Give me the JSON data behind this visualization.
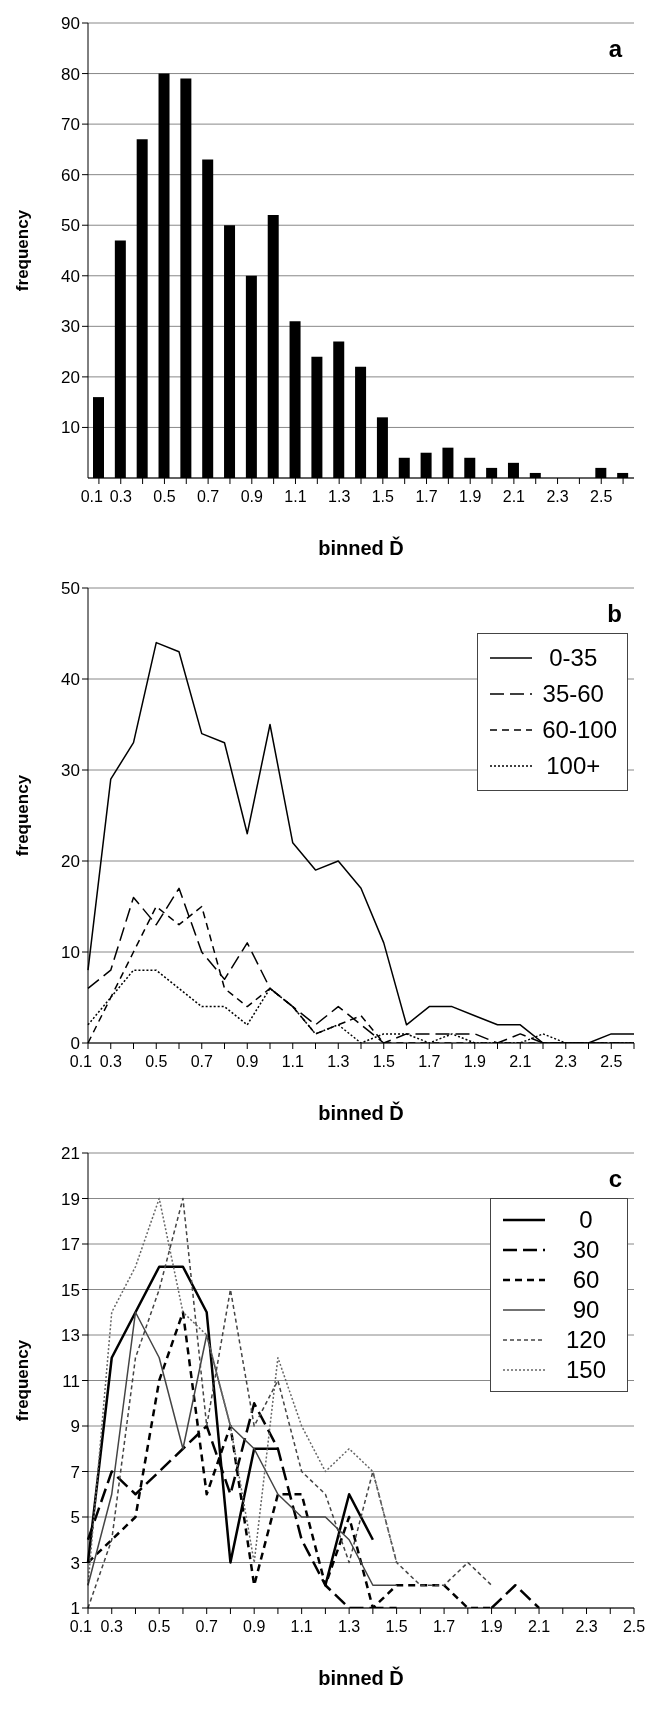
{
  "chart_data": [
    {
      "type": "bar",
      "title": "a",
      "xlabel": "binned Ď",
      "ylabel": "frequency",
      "categories": [
        "0.1",
        "0.3",
        null,
        "0.5",
        null,
        "0.7",
        null,
        "0.9",
        null,
        "1.1",
        null,
        "1.3",
        null,
        "1.5",
        null,
        "1.7",
        null,
        "1.9",
        null,
        "2.1",
        null,
        "2.3",
        null,
        "2.5",
        null
      ],
      "values": [
        16,
        47,
        67,
        80,
        79,
        63,
        50,
        40,
        52,
        31,
        24,
        27,
        22,
        12,
        4,
        5,
        6,
        4,
        2,
        3,
        1,
        0,
        0,
        2,
        1
      ],
      "color": "#000000",
      "ylim": [
        0,
        90
      ],
      "yticks": [
        10,
        20,
        30,
        40,
        50,
        60,
        70,
        80,
        90
      ],
      "grid": "y"
    },
    {
      "type": "line",
      "title": "b",
      "xlabel": "binned Ď",
      "ylabel": "frequency",
      "categories": [
        "0.1",
        "0.3",
        null,
        "0.5",
        null,
        "0.7",
        null,
        "0.9",
        null,
        "1.1",
        null,
        "1.3",
        null,
        "1.5",
        null,
        "1.7",
        null,
        "1.9",
        null,
        "2.1",
        null,
        "2.3",
        null,
        "2.5",
        null
      ],
      "series": [
        {
          "name": "0-35",
          "color": "#000000",
          "line_style": "solid",
          "values": [
            8,
            29,
            33,
            44,
            43,
            34,
            33,
            23,
            35,
            22,
            19,
            20,
            17,
            11,
            2,
            4,
            4,
            3,
            2,
            2,
            0,
            0,
            0,
            1,
            1
          ]
        },
        {
          "name": "35-60",
          "color": "#000000",
          "line_style": "dashed",
          "values": [
            6,
            8,
            16,
            13,
            17,
            10,
            7,
            11,
            6,
            4,
            2,
            4,
            2,
            0,
            1,
            1,
            1,
            1,
            0,
            1,
            0,
            0,
            0,
            0,
            0
          ]
        },
        {
          "name": "60-100",
          "color": "#000000",
          "line_style": "dashed",
          "values": [
            0,
            5,
            10,
            15,
            13,
            15,
            6,
            4,
            6,
            4,
            1,
            2,
            3,
            0,
            0,
            0,
            0,
            0,
            0,
            0,
            0,
            0,
            0,
            0,
            0
          ]
        },
        {
          "name": "100+",
          "color": "#000000",
          "line_style": "dotted",
          "values": [
            2,
            5,
            8,
            8,
            6,
            4,
            4,
            2,
            6,
            4,
            1,
            2,
            0,
            1,
            1,
            0,
            1,
            0,
            0,
            0,
            1,
            0,
            0,
            0,
            0
          ]
        }
      ],
      "ylim": [
        0,
        50
      ],
      "yticks": [
        0,
        10,
        20,
        30,
        40,
        50
      ],
      "grid": "y",
      "legend": "top right",
      "marker": "none"
    },
    {
      "type": "line",
      "title": "c",
      "xlabel": "binned Ď",
      "ylabel": "frequency",
      "categories": [
        "0.1",
        "0.3",
        null,
        "0.5",
        null,
        "0.7",
        null,
        "0.9",
        null,
        "1.1",
        null,
        "1.3",
        null,
        "1.5",
        null,
        "1.7",
        null,
        "1.9",
        null,
        "2.1",
        null,
        "2.3",
        null,
        "2.5"
      ],
      "series": [
        {
          "name": "0",
          "color": "#000000",
          "line_style": "solid",
          "values": [
            3,
            12,
            14,
            16,
            16,
            14,
            3,
            8,
            8,
            null,
            2,
            6,
            4,
            null,
            null,
            null,
            null,
            null,
            null,
            null,
            null,
            null,
            null,
            null
          ]
        },
        {
          "name": "30",
          "color": "#000000",
          "line_style": "dashed",
          "values": [
            4,
            7,
            6,
            7,
            8,
            9,
            6,
            10,
            8,
            4,
            2,
            1,
            1,
            1,
            null,
            null,
            null,
            1,
            2,
            1,
            null,
            null,
            null,
            null
          ]
        },
        {
          "name": "60",
          "color": "#000000",
          "line_style": "dashed",
          "values": [
            3,
            4,
            5,
            11,
            14,
            6,
            9,
            2,
            6,
            6,
            2,
            5,
            1,
            2,
            2,
            2,
            1,
            1,
            null,
            null,
            null,
            null,
            null,
            null
          ]
        },
        {
          "name": "90",
          "color": "#444444",
          "line_style": "solid",
          "values": [
            2,
            6,
            14,
            12,
            8,
            13,
            9,
            8,
            6,
            5,
            5,
            4,
            2,
            2,
            null,
            null,
            null,
            null,
            null,
            null,
            null,
            null,
            null,
            null
          ]
        },
        {
          "name": "120",
          "color": "#444444",
          "line_style": "dashed",
          "values": [
            1,
            4,
            12,
            15,
            19,
            9,
            15,
            9,
            11,
            7,
            6,
            3,
            7,
            3,
            2,
            2,
            3,
            2,
            null,
            null,
            null,
            null,
            null,
            null
          ]
        },
        {
          "name": "150",
          "color": "#666666",
          "line_style": "dotted",
          "values": [
            2,
            14,
            16,
            19,
            14,
            13,
            9,
            3,
            12,
            9,
            7,
            8,
            7,
            3,
            null,
            null,
            null,
            null,
            null,
            null,
            null,
            null,
            null,
            null
          ]
        }
      ],
      "ylim": [
        1,
        21
      ],
      "yticks": [
        1,
        3,
        5,
        7,
        9,
        11,
        13,
        15,
        17,
        19,
        21
      ],
      "grid": "y",
      "legend": "top right",
      "marker": "none"
    }
  ]
}
